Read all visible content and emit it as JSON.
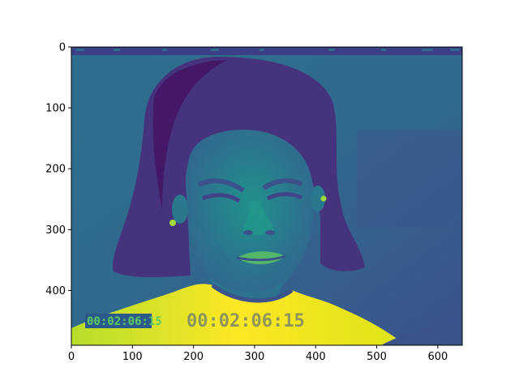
{
  "image": {
    "description_colormap": "viridis",
    "width": 640,
    "height": 490,
    "overlay_timestamp": "00:02:06:15",
    "ghost_timestamp": "00:02:06:15"
  },
  "axes": {
    "x_ticks": [
      0,
      100,
      200,
      300,
      400,
      500,
      600
    ],
    "y_ticks": [
      0,
      100,
      200,
      300,
      400
    ],
    "xlim": [
      0,
      640
    ],
    "ylim": [
      490,
      0
    ]
  },
  "colors": {
    "bg_dark": "#3b528b",
    "bg_mid": "#31688e",
    "hair": "#46337e",
    "hair_dark": "#440154",
    "skin": "#2a788e",
    "skin_light": "#21918c",
    "shirt": "#fde725",
    "shirt_mid": "#b5de2b",
    "stamp": "#5ec962"
  }
}
